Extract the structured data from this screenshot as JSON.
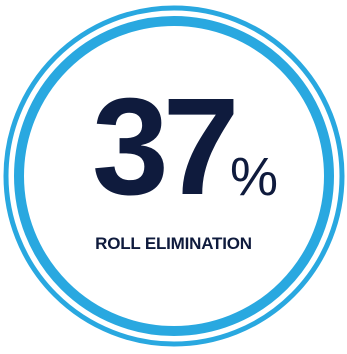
{
  "stat": {
    "value": "37",
    "unit": "%",
    "caption": "ROLL ELIMINATION"
  },
  "colors": {
    "ring": "#29a8e0",
    "text": "#0f1b3d",
    "background": "#ffffff"
  }
}
